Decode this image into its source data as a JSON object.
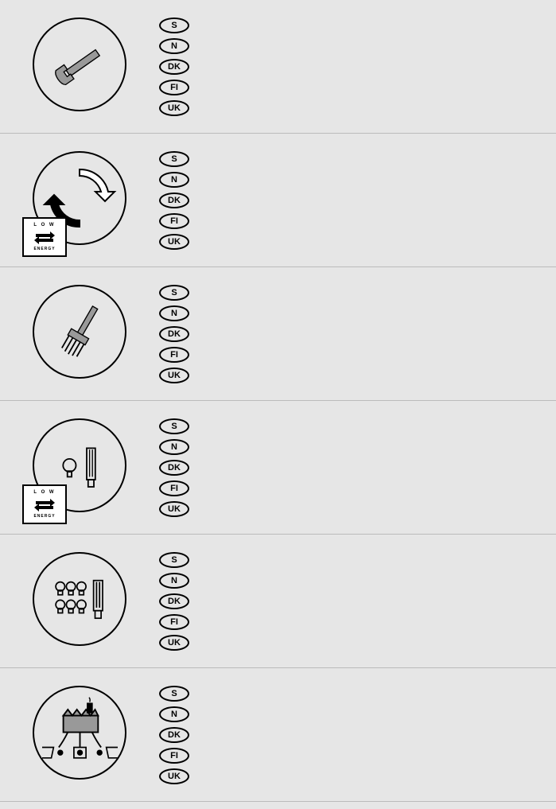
{
  "countries": [
    "S",
    "N",
    "DK",
    "FI",
    "UK"
  ],
  "lowEnergyBadge": {
    "topText": "L O W",
    "bottomText": "ENERGY"
  },
  "rows": [
    {
      "icon": "wrench",
      "lowEnergy": false
    },
    {
      "icon": "recycle",
      "lowEnergy": true
    },
    {
      "icon": "brush",
      "lowEnergy": false
    },
    {
      "icon": "bulb-single",
      "lowEnergy": true
    },
    {
      "icon": "bulb-multi",
      "lowEnergy": false
    },
    {
      "icon": "factory",
      "lowEnergy": false
    }
  ],
  "colors": {
    "background": "#e6e6e6",
    "border": "#000000",
    "iconFill": "#999999"
  }
}
